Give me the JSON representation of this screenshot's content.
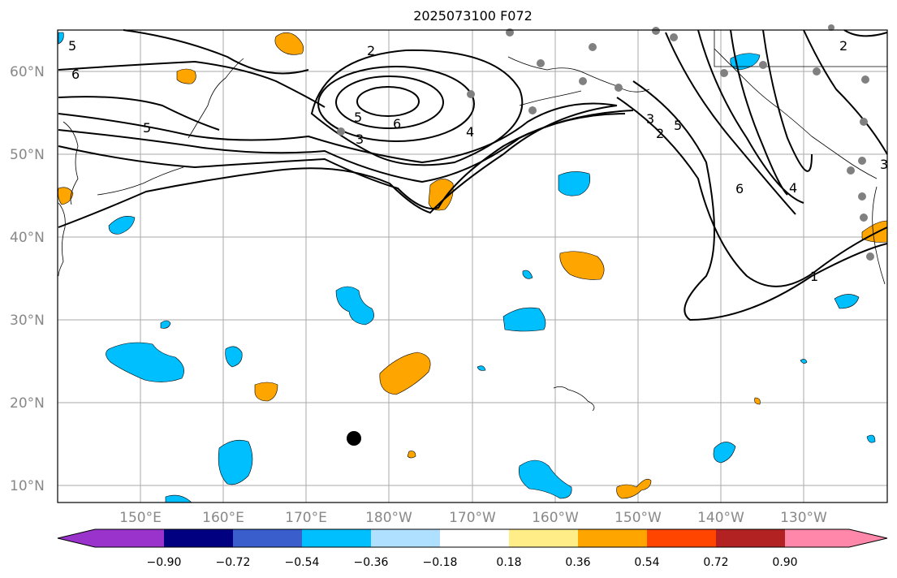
{
  "title": "2025073100 F072",
  "lat_labels": [
    "60°N",
    "50°N",
    "40°N",
    "30°N",
    "20°N",
    "10°N"
  ],
  "lon_labels": [
    "150°E",
    "160°E",
    "170°E",
    "180°W",
    "170°W",
    "160°W",
    "150°W",
    "140°W",
    "130°W"
  ],
  "colorbar": {
    "ticks": [
      "−0.90",
      "−0.72",
      "−0.54",
      "−0.36",
      "−0.18",
      "0.18",
      "0.36",
      "0.54",
      "0.72",
      "0.90"
    ],
    "colors": [
      "#9933cc",
      "#000080",
      "#3a5fcd",
      "#00bfff",
      "#b0e0ff",
      "#ffffff",
      "#ffee88",
      "#ffa500",
      "#ff4500",
      "#b22222",
      "#ff88aa",
      "#ff88aa"
    ]
  },
  "contour_labels": [
    "5",
    "6",
    "5",
    "2",
    "5",
    "6",
    "3",
    "4",
    "3",
    "2",
    "5",
    "6",
    "4",
    "1",
    "2",
    "3"
  ],
  "colors": {
    "positive_anomaly": "#ffa500",
    "negative_anomaly": "#00bfff",
    "gridline": "#aaaaaa",
    "station": "#808080"
  }
}
